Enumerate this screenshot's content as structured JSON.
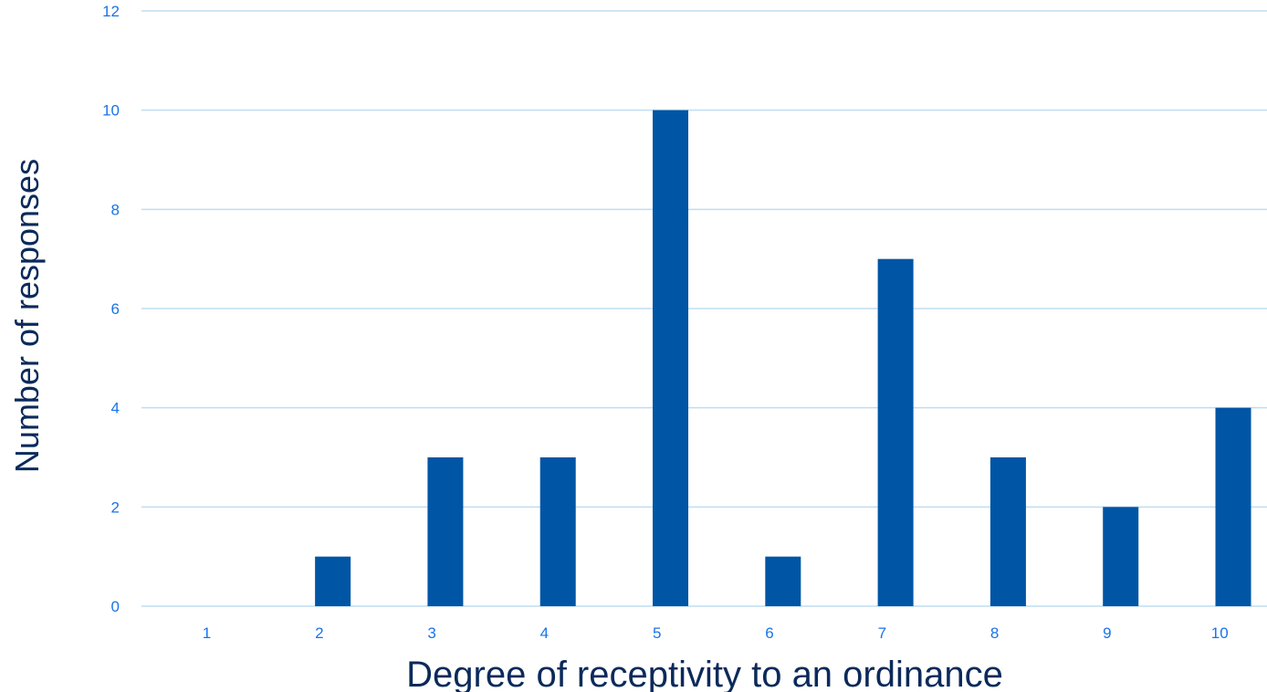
{
  "chart_data": {
    "type": "bar",
    "title": "",
    "xlabel": "Degree of receptivity to an ordinance",
    "ylabel": "Number of responses",
    "categories": [
      "1",
      "2",
      "3",
      "4",
      "5",
      "6",
      "7",
      "8",
      "9",
      "10"
    ],
    "values": [
      0,
      1,
      3,
      3,
      10,
      1,
      7,
      3,
      2,
      4
    ],
    "ylim": [
      0,
      12
    ],
    "yticks": [
      "0",
      "2",
      "4",
      "6",
      "8",
      "10",
      "12"
    ],
    "grid": true,
    "legend": "none",
    "colors": {
      "bar": "#0055A5",
      "grid": "#BFDDF3",
      "tick_text": "#1A73E8",
      "axis_title": "#0B2A5B"
    }
  }
}
